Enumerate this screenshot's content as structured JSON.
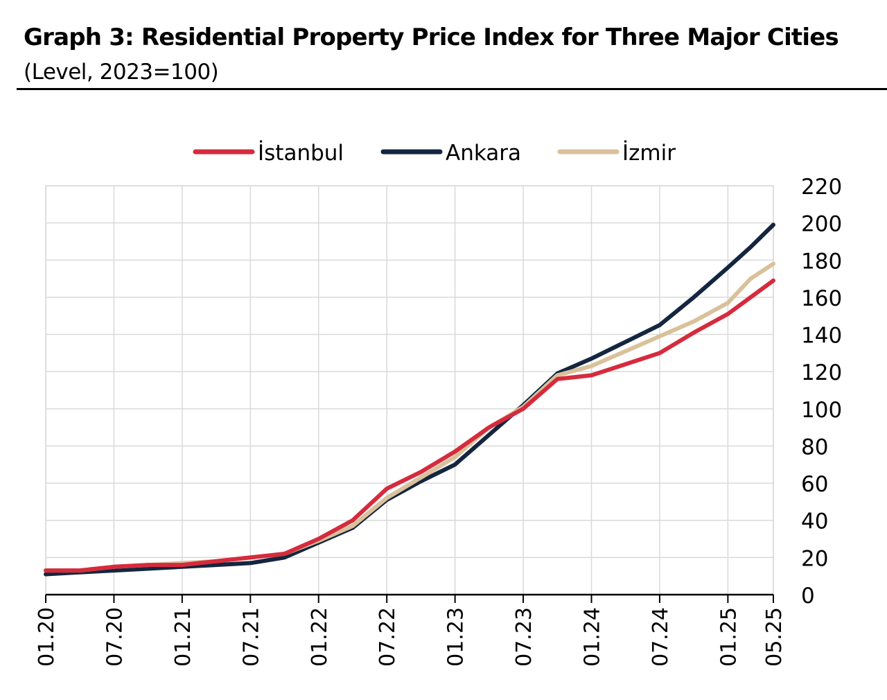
{
  "header": {
    "title": "Graph 3: Residential Property Price Index for Three Major Cities",
    "subtitle": "(Level, 2023=100)"
  },
  "chart_data": {
    "type": "line",
    "title": "Graph 3: Residential Property Price Index for Three Major Cities",
    "subtitle": "(Level, 2023=100)",
    "xlabel": "",
    "ylabel": "",
    "x_start": "01.20",
    "x_end": "05.25",
    "x_tick_labels": [
      "01.20",
      "07.20",
      "01.21",
      "07.21",
      "01.22",
      "07.22",
      "01.23",
      "07.23",
      "01.24",
      "07.24",
      "01.25",
      "05.25"
    ],
    "ylim": [
      0,
      220
    ],
    "y_ticks": [
      0,
      20,
      40,
      60,
      80,
      100,
      120,
      140,
      160,
      180,
      200,
      220
    ],
    "y_axis_side": "right",
    "grid": true,
    "legend": "top",
    "series": [
      {
        "name": "İstanbul",
        "color": "#d62b3d",
        "values": [
          {
            "x": "01.20",
            "y": 13
          },
          {
            "x": "04.20",
            "y": 13
          },
          {
            "x": "07.20",
            "y": 15
          },
          {
            "x": "10.20",
            "y": 16
          },
          {
            "x": "01.21",
            "y": 16
          },
          {
            "x": "04.21",
            "y": 18
          },
          {
            "x": "07.21",
            "y": 20
          },
          {
            "x": "10.21",
            "y": 22
          },
          {
            "x": "01.22",
            "y": 30
          },
          {
            "x": "04.22",
            "y": 40
          },
          {
            "x": "07.22",
            "y": 57
          },
          {
            "x": "10.22",
            "y": 66
          },
          {
            "x": "01.23",
            "y": 77
          },
          {
            "x": "04.23",
            "y": 90
          },
          {
            "x": "07.23",
            "y": 100
          },
          {
            "x": "10.23",
            "y": 116
          },
          {
            "x": "01.24",
            "y": 118
          },
          {
            "x": "04.24",
            "y": 124
          },
          {
            "x": "07.24",
            "y": 130
          },
          {
            "x": "10.24",
            "y": 141
          },
          {
            "x": "01.25",
            "y": 151
          },
          {
            "x": "03.25",
            "y": 160
          },
          {
            "x": "05.25",
            "y": 169
          }
        ]
      },
      {
        "name": "Ankara",
        "color": "#14263f",
        "values": [
          {
            "x": "01.20",
            "y": 11
          },
          {
            "x": "04.20",
            "y": 12
          },
          {
            "x": "07.20",
            "y": 13
          },
          {
            "x": "10.20",
            "y": 14
          },
          {
            "x": "01.21",
            "y": 15
          },
          {
            "x": "04.21",
            "y": 16
          },
          {
            "x": "07.21",
            "y": 17
          },
          {
            "x": "10.21",
            "y": 20
          },
          {
            "x": "01.22",
            "y": 28
          },
          {
            "x": "04.22",
            "y": 36
          },
          {
            "x": "07.22",
            "y": 51
          },
          {
            "x": "10.22",
            "y": 61
          },
          {
            "x": "01.23",
            "y": 70
          },
          {
            "x": "04.23",
            "y": 86
          },
          {
            "x": "07.23",
            "y": 102
          },
          {
            "x": "10.23",
            "y": 119
          },
          {
            "x": "01.24",
            "y": 127
          },
          {
            "x": "04.24",
            "y": 136
          },
          {
            "x": "07.24",
            "y": 145
          },
          {
            "x": "10.24",
            "y": 160
          },
          {
            "x": "01.25",
            "y": 176
          },
          {
            "x": "03.25",
            "y": 187
          },
          {
            "x": "05.25",
            "y": 199
          }
        ]
      },
      {
        "name": "İzmir",
        "color": "#d9c19b",
        "values": [
          {
            "x": "01.20",
            "y": 13
          },
          {
            "x": "04.20",
            "y": 13
          },
          {
            "x": "07.20",
            "y": 15
          },
          {
            "x": "10.20",
            "y": 16
          },
          {
            "x": "01.21",
            "y": 17
          },
          {
            "x": "04.21",
            "y": 18
          },
          {
            "x": "07.21",
            "y": 20
          },
          {
            "x": "10.21",
            "y": 22
          },
          {
            "x": "01.22",
            "y": 29
          },
          {
            "x": "04.22",
            "y": 37
          },
          {
            "x": "07.22",
            "y": 52
          },
          {
            "x": "10.22",
            "y": 63
          },
          {
            "x": "01.23",
            "y": 74
          },
          {
            "x": "04.23",
            "y": 90
          },
          {
            "x": "07.23",
            "y": 101
          },
          {
            "x": "10.23",
            "y": 118
          },
          {
            "x": "01.24",
            "y": 123
          },
          {
            "x": "04.24",
            "y": 131
          },
          {
            "x": "07.24",
            "y": 139
          },
          {
            "x": "10.24",
            "y": 147
          },
          {
            "x": "01.25",
            "y": 157
          },
          {
            "x": "03.25",
            "y": 170
          },
          {
            "x": "05.25",
            "y": 178
          }
        ]
      }
    ]
  }
}
